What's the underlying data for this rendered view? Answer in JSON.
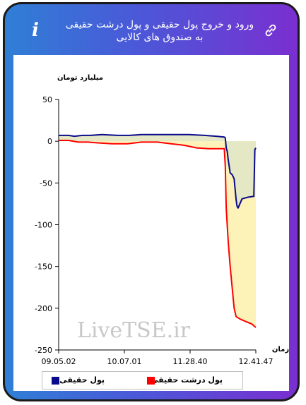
{
  "header": {
    "title": "ورود و خروج پول حقیقی و پول درشت حقیقی به صندوق های کالایی",
    "info_icon": "i"
  },
  "chart_data": {
    "type": "line",
    "ylabel": "میلیارد تومان",
    "xlabel": "زمان",
    "watermark": "LiveTSE.ir",
    "ylim": [
      -250,
      50
    ],
    "yticks": [
      50,
      0,
      -50,
      -100,
      -150,
      -200,
      -250
    ],
    "xticks": [
      "09.05.02",
      "10.07.01",
      "11.28.40",
      "12.41.47"
    ],
    "grid": false,
    "legend_position": "bottom",
    "series": [
      {
        "name": "پول حقیقی",
        "color": "#0a0a8c",
        "fill": "#e5e8c4",
        "values": [
          [
            0,
            7
          ],
          [
            0.05,
            7
          ],
          [
            0.08,
            6
          ],
          [
            0.12,
            7
          ],
          [
            0.16,
            7
          ],
          [
            0.22,
            8
          ],
          [
            0.3,
            7
          ],
          [
            0.36,
            7
          ],
          [
            0.42,
            8
          ],
          [
            0.5,
            8
          ],
          [
            0.58,
            8
          ],
          [
            0.66,
            8
          ],
          [
            0.74,
            7
          ],
          [
            0.8,
            6
          ],
          [
            0.84,
            5
          ],
          [
            0.845,
            4
          ],
          [
            0.85,
            -8
          ],
          [
            0.855,
            -12
          ],
          [
            0.86,
            -22
          ],
          [
            0.87,
            -38
          ],
          [
            0.88,
            -40
          ],
          [
            0.89,
            -45
          ],
          [
            0.9,
            -70
          ],
          [
            0.905,
            -78
          ],
          [
            0.91,
            -80
          ],
          [
            0.93,
            -69
          ],
          [
            0.96,
            -67
          ],
          [
            0.99,
            -66
          ],
          [
            0.995,
            -10
          ],
          [
            1,
            -8
          ]
        ]
      },
      {
        "name": "پول درشت حقیقی",
        "color": "#ff0000",
        "fill": "#fdf2b8",
        "values": [
          [
            0,
            1
          ],
          [
            0.05,
            1
          ],
          [
            0.1,
            -1
          ],
          [
            0.15,
            -1
          ],
          [
            0.2,
            -2
          ],
          [
            0.27,
            -3
          ],
          [
            0.35,
            -3
          ],
          [
            0.42,
            -1
          ],
          [
            0.5,
            -1
          ],
          [
            0.57,
            -3
          ],
          [
            0.64,
            -5
          ],
          [
            0.7,
            -8
          ],
          [
            0.76,
            -9
          ],
          [
            0.8,
            -9
          ],
          [
            0.84,
            -9
          ],
          [
            0.845,
            -30
          ],
          [
            0.85,
            -80
          ],
          [
            0.86,
            -120
          ],
          [
            0.87,
            -150
          ],
          [
            0.88,
            -175
          ],
          [
            0.89,
            -200
          ],
          [
            0.9,
            -210
          ],
          [
            0.92,
            -213
          ],
          [
            0.95,
            -216
          ],
          [
            0.98,
            -219
          ],
          [
            1,
            -223
          ]
        ]
      }
    ]
  }
}
